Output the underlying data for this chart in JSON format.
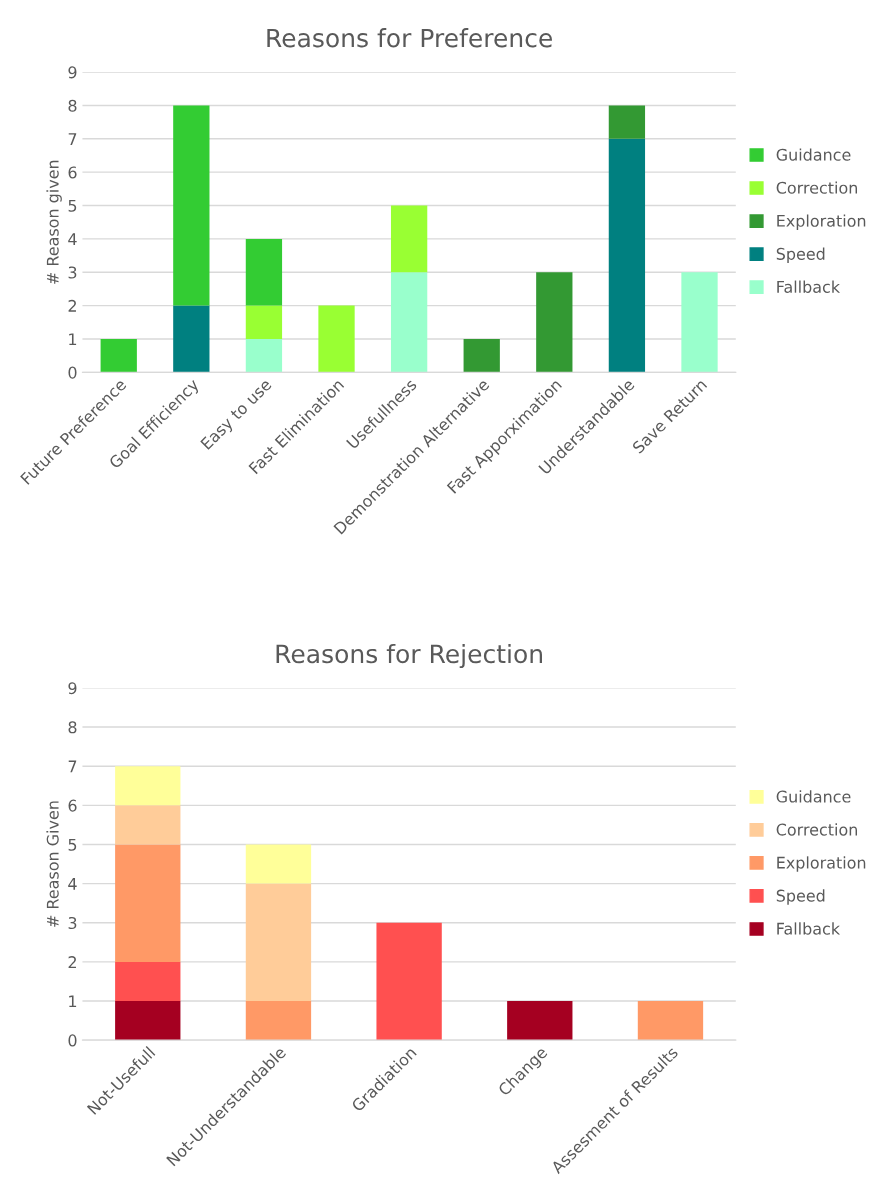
{
  "chart_data": [
    {
      "type": "bar",
      "title": "Reasons for Preference",
      "ylabel": "# Reason given",
      "stacked": true,
      "grid": "y",
      "legend": "right",
      "ylim": [
        0,
        9
      ],
      "yticks": [
        0,
        1,
        2,
        3,
        4,
        5,
        6,
        7,
        8,
        9
      ],
      "categories": [
        "Future Preference",
        "Goal Efficiency",
        "Easy to use",
        "Fast Elimination",
        "Usefullness",
        "Demonstration Alternative",
        "Fast Apporximation",
        "Understandable",
        "Save Return"
      ],
      "series": [
        {
          "name": "Fallback",
          "color": "#99ffcc",
          "values": [
            null,
            null,
            1,
            null,
            3,
            null,
            null,
            null,
            3
          ]
        },
        {
          "name": "Speed",
          "color": "#008080",
          "values": [
            null,
            2,
            null,
            null,
            null,
            null,
            null,
            7,
            null
          ]
        },
        {
          "name": "Exploration",
          "color": "#339933",
          "values": [
            null,
            null,
            null,
            null,
            null,
            1,
            3,
            1,
            null
          ]
        },
        {
          "name": "Correction",
          "color": "#99ff33",
          "values": [
            null,
            null,
            1,
            2,
            2,
            null,
            null,
            null,
            null
          ]
        },
        {
          "name": "Guidance",
          "color": "#33cc33",
          "values": [
            1,
            6,
            2,
            null,
            null,
            null,
            null,
            null,
            null
          ]
        }
      ]
    },
    {
      "type": "bar",
      "title": "Reasons for Rejection",
      "ylabel": "# Reason Given",
      "stacked": true,
      "grid": "y",
      "legend": "right",
      "ylim": [
        0,
        9
      ],
      "yticks": [
        0,
        1,
        2,
        3,
        4,
        5,
        6,
        7,
        8,
        9
      ],
      "categories": [
        "Not-Usefull",
        "Not-Understandable",
        "Gradiation",
        "Change",
        "Assesment of Results"
      ],
      "series": [
        {
          "name": "Fallback",
          "color": "#a50021",
          "values": [
            1,
            null,
            null,
            1,
            null
          ]
        },
        {
          "name": "Speed",
          "color": "#ff5050",
          "values": [
            1,
            null,
            3,
            null,
            null
          ]
        },
        {
          "name": "Exploration",
          "color": "#ff9966",
          "values": [
            3,
            1,
            null,
            null,
            1
          ]
        },
        {
          "name": "Correction",
          "color": "#ffcc99",
          "values": [
            1,
            3,
            null,
            null,
            null
          ]
        },
        {
          "name": "Guidance",
          "color": "#ffff99",
          "values": [
            1,
            1,
            null,
            null,
            null
          ]
        }
      ]
    }
  ]
}
